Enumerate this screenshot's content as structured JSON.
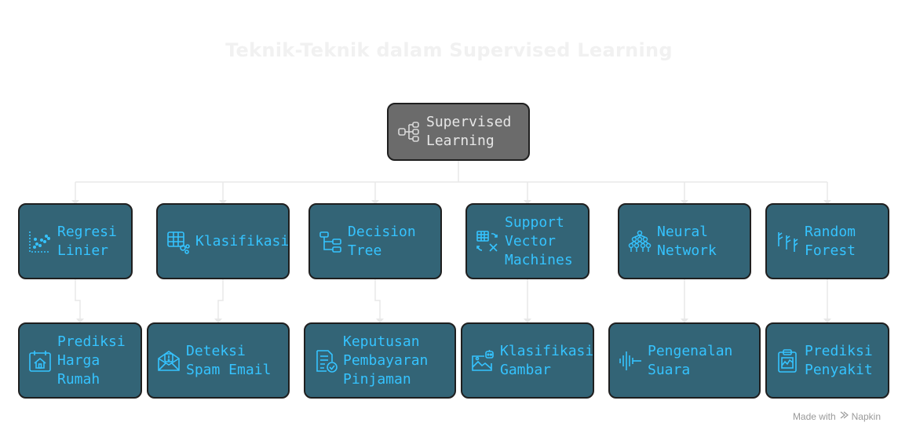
{
  "title": "Teknik-Teknik dalam Supervised Learning",
  "root": {
    "label": "Supervised\nLearning",
    "icon": "data-flow-icon"
  },
  "techniques": [
    {
      "label": "Regresi\nLinier",
      "icon": "scatter-plot-icon"
    },
    {
      "label": "Klasifikasi",
      "icon": "table-classify-icon"
    },
    {
      "label": "Decision\nTree",
      "icon": "decision-tree-icon"
    },
    {
      "label": "Support\nVector\nMachines",
      "icon": "vector-machine-icon"
    },
    {
      "label": "Neural\nNetwork",
      "icon": "neural-network-icon"
    },
    {
      "label": "Random\nForest",
      "icon": "forest-icon"
    }
  ],
  "applications": [
    {
      "label": "Prediksi\nHarga\nRumah",
      "icon": "house-calendar-icon"
    },
    {
      "label": "Deteksi\nSpam Email",
      "icon": "spam-email-icon"
    },
    {
      "label": "Keputusan\nPembayaran\nPinjaman",
      "icon": "approved-document-icon"
    },
    {
      "label": "Klasifikasi\nGambar",
      "icon": "image-robot-icon"
    },
    {
      "label": "Pengenalan\nSuara",
      "icon": "sound-wave-icon"
    },
    {
      "label": "Prediksi\nPenyakit",
      "icon": "medical-clipboard-icon"
    }
  ],
  "footer": {
    "made_with": "Made with",
    "brand": "Napkin"
  },
  "colors": {
    "root_fill": "#6b6b6b",
    "node_fill": "#336476",
    "node_border": "#1f1f1f",
    "node_text": "#35c3ff",
    "root_text": "#e6e6e6",
    "connector": "#e6e6e6"
  }
}
